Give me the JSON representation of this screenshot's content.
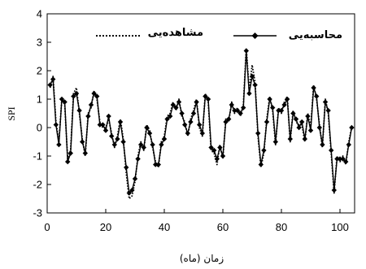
{
  "chart_data": {
    "type": "line",
    "title": "",
    "xlabel": "زمان (ماه)",
    "ylabel": "SPI",
    "xlim": [
      0,
      105
    ],
    "ylim": [
      -3,
      4
    ],
    "xticks": [
      0,
      20,
      40,
      60,
      80,
      100
    ],
    "yticks": [
      -3,
      -2,
      -1,
      0,
      1,
      2,
      3,
      4
    ],
    "grid": false,
    "legend": {
      "placement": "top"
    },
    "series": [
      {
        "name": "محاسبه‌یی",
        "style": "solid-diamond",
        "color": "#000000",
        "x": [
          1,
          2,
          3,
          4,
          5,
          6,
          7,
          8,
          9,
          10,
          11,
          12,
          13,
          14,
          15,
          16,
          17,
          18,
          19,
          20,
          21,
          22,
          23,
          24,
          25,
          26,
          27,
          28,
          29,
          30,
          31,
          32,
          33,
          34,
          35,
          36,
          37,
          38,
          39,
          40,
          41,
          42,
          43,
          44,
          45,
          46,
          47,
          48,
          49,
          50,
          51,
          52,
          53,
          54,
          55,
          56,
          57,
          58,
          59,
          60,
          61,
          62,
          63,
          64,
          65,
          66,
          67,
          68,
          69,
          70,
          71,
          72,
          73,
          74,
          75,
          76,
          77,
          78,
          79,
          80,
          81,
          82,
          83,
          84,
          85,
          86,
          87,
          88,
          89,
          90,
          91,
          92,
          93,
          94,
          95,
          96,
          97,
          98,
          99,
          100,
          101,
          102,
          103,
          104
        ],
        "y": [
          1.5,
          1.7,
          0.1,
          -0.6,
          1.0,
          0.9,
          -1.2,
          -0.9,
          1.1,
          1.2,
          0.6,
          -0.5,
          -0.9,
          0.4,
          0.8,
          1.2,
          1.1,
          0.1,
          0.1,
          -0.1,
          0.4,
          -0.3,
          -0.6,
          -0.4,
          0.2,
          -0.5,
          -1.4,
          -2.3,
          -2.2,
          -1.8,
          -1.1,
          -0.6,
          -0.7,
          0.0,
          -0.2,
          -0.6,
          -1.3,
          -1.3,
          -0.6,
          -0.4,
          0.3,
          0.4,
          0.8,
          0.7,
          0.9,
          0.5,
          0.1,
          -0.2,
          0.2,
          0.5,
          0.9,
          0.1,
          -0.2,
          1.1,
          1.0,
          -0.7,
          -0.8,
          -1.1,
          -0.7,
          -1.0,
          0.2,
          0.3,
          0.8,
          0.6,
          0.6,
          0.5,
          0.7,
          2.7,
          1.2,
          1.8,
          1.5,
          -0.2,
          -1.3,
          -0.8,
          0.2,
          1.0,
          0.7,
          -0.5,
          0.6,
          0.6,
          0.8,
          1.0,
          -0.4,
          0.5,
          0.3,
          0.0,
          0.2,
          -0.4,
          0.4,
          -0.1,
          1.4,
          1.1,
          0.0,
          -0.6,
          0.9,
          0.6,
          -0.8,
          -2.2,
          -1.1,
          -1.1,
          -1.1,
          -1.2,
          -0.6,
          0.0
        ]
      },
      {
        "name": "مشاهده‌یی",
        "style": "dotted",
        "color": "#000000",
        "x": [
          1,
          2,
          3,
          4,
          5,
          6,
          7,
          8,
          9,
          10,
          11,
          12,
          13,
          14,
          15,
          16,
          17,
          18,
          19,
          20,
          21,
          22,
          23,
          24,
          25,
          26,
          27,
          28,
          29,
          30,
          31,
          32,
          33,
          34,
          35,
          36,
          37,
          38,
          39,
          40,
          41,
          42,
          43,
          44,
          45,
          46,
          47,
          48,
          49,
          50,
          51,
          52,
          53,
          54,
          55,
          56,
          57,
          58,
          59,
          60,
          61,
          62,
          63,
          64,
          65,
          66,
          67,
          68,
          69,
          70,
          71,
          72,
          73,
          74,
          75,
          76,
          77,
          78,
          79,
          80,
          81,
          82,
          83,
          84,
          85,
          86,
          87,
          88,
          89,
          90,
          91,
          92,
          93,
          94,
          95,
          96,
          97,
          98,
          99,
          100,
          101,
          102,
          103,
          104
        ],
        "y": [
          1.4,
          1.8,
          0.2,
          -0.5,
          1.0,
          0.8,
          -1.1,
          -0.8,
          1.2,
          1.4,
          0.5,
          -0.4,
          -1.0,
          0.5,
          0.7,
          1.3,
          1.0,
          0.2,
          0.0,
          0.0,
          0.3,
          -0.2,
          -0.7,
          -0.3,
          0.3,
          -0.4,
          -1.6,
          -2.5,
          -2.4,
          -1.9,
          -1.0,
          -0.5,
          -0.8,
          0.1,
          -0.1,
          -0.7,
          -1.2,
          -1.4,
          -0.5,
          -0.3,
          0.4,
          0.5,
          0.9,
          0.6,
          1.0,
          0.4,
          0.2,
          -0.3,
          0.3,
          0.6,
          1.0,
          0.0,
          -0.3,
          1.2,
          0.9,
          -0.8,
          -0.9,
          -1.3,
          -0.6,
          -1.1,
          0.3,
          0.2,
          0.9,
          0.5,
          0.7,
          0.4,
          0.8,
          2.8,
          1.3,
          2.2,
          1.6,
          -0.3,
          -1.4,
          -0.9,
          0.3,
          1.1,
          0.6,
          -0.6,
          0.7,
          0.5,
          0.9,
          1.1,
          -0.5,
          0.6,
          0.2,
          0.1,
          0.1,
          -0.5,
          0.5,
          0.0,
          1.5,
          1.0,
          0.1,
          -0.7,
          1.0,
          0.5,
          -0.9,
          -2.3,
          -1.0,
          -1.2,
          -1.0,
          -1.3,
          -0.5,
          0.0
        ]
      }
    ]
  }
}
